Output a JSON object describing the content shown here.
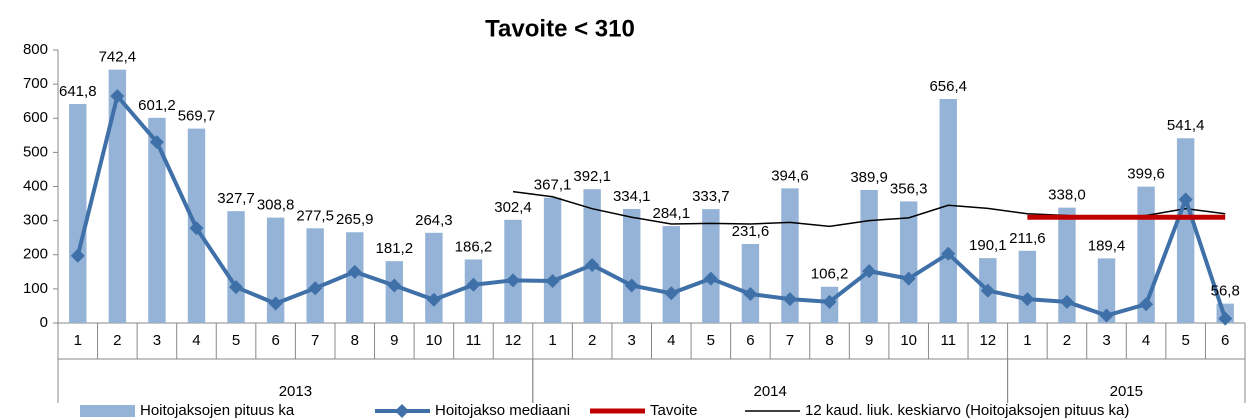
{
  "chart_data": {
    "type": "bar",
    "title": "Tavoite < 310",
    "categories": [
      "1",
      "2",
      "3",
      "4",
      "5",
      "6",
      "7",
      "8",
      "9",
      "10",
      "11",
      "12",
      "1",
      "2",
      "3",
      "4",
      "5",
      "6",
      "7",
      "8",
      "9",
      "10",
      "11",
      "12",
      "1",
      "2",
      "3",
      "4",
      "5",
      "6"
    ],
    "groups": [
      {
        "label": "2013",
        "span": 12
      },
      {
        "label": "2014",
        "span": 12
      },
      {
        "label": "2015",
        "span": 6
      }
    ],
    "ylim": [
      0,
      800
    ],
    "yticks": [
      0,
      100,
      200,
      300,
      400,
      500,
      600,
      700,
      800
    ],
    "series": [
      {
        "name": "Hoitojaksojen pituus ka",
        "kind": "bar",
        "color": "#95b3d7",
        "values": [
          641.8,
          742.4,
          601.2,
          569.7,
          327.7,
          308.8,
          277.5,
          265.9,
          181.2,
          264.3,
          186.2,
          302.4,
          367.1,
          392.1,
          334.1,
          284.1,
          333.7,
          231.6,
          394.6,
          106.2,
          389.9,
          356.3,
          656.4,
          190.1,
          211.6,
          338.0,
          189.4,
          399.6,
          541.4,
          56.8
        ],
        "value_labels": [
          "641,8",
          "742,4",
          "601,2",
          "569,7",
          "327,7",
          "308,8",
          "277,5",
          "265,9",
          "181,2",
          "264,3",
          "186,2",
          "302,4",
          "367,1",
          "392,1",
          "334,1",
          "284,1",
          "333,7",
          "231,6",
          "394,6",
          "106,2",
          "389,9",
          "356,3",
          "656,4",
          "190,1",
          "211,6",
          "338,0",
          "189,4",
          "399,6",
          "541,4",
          "56,8"
        ]
      },
      {
        "name": "Hoitojakso mediaani",
        "kind": "marker-line",
        "color": "#3f70a8",
        "values": [
          197,
          665,
          530,
          278,
          105,
          57,
          102,
          150,
          110,
          68,
          112,
          125,
          123,
          170,
          110,
          87,
          130,
          85,
          70,
          62,
          152,
          130,
          203,
          95,
          70,
          62,
          22,
          55,
          362,
          13
        ]
      },
      {
        "name": "Tavoite",
        "kind": "thick-line",
        "color": "#c00000",
        "values": [
          null,
          null,
          null,
          null,
          null,
          null,
          null,
          null,
          null,
          null,
          null,
          null,
          null,
          null,
          null,
          null,
          null,
          null,
          null,
          null,
          null,
          null,
          null,
          null,
          310,
          310,
          310,
          310,
          310,
          310
        ]
      },
      {
        "name": "12 kaud. liuk. keskiarvo (Hoitojaksojen pituus ka)",
        "kind": "thin-line",
        "color": "#000000",
        "values": [
          null,
          null,
          null,
          null,
          null,
          null,
          null,
          null,
          null,
          null,
          null,
          385,
          370,
          335,
          310,
          290,
          292,
          290,
          295,
          283,
          300,
          308,
          345,
          336,
          320,
          315,
          305,
          315,
          335,
          320
        ]
      }
    ]
  }
}
